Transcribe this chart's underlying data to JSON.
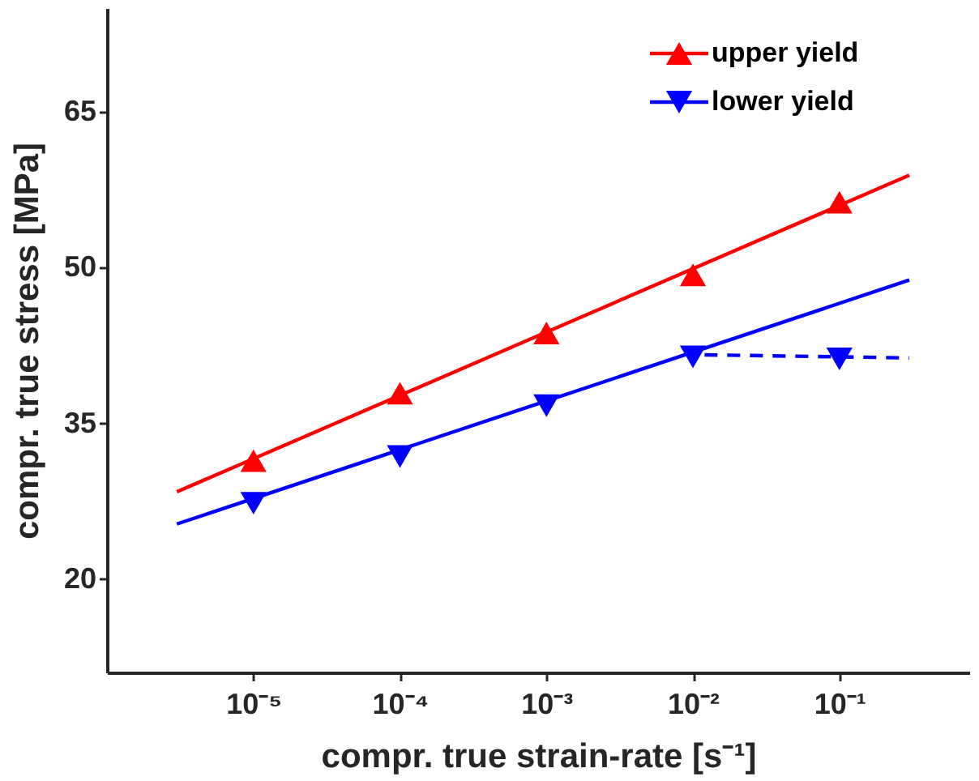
{
  "chart_data": {
    "type": "scatter",
    "xlabel": "compr. true strain-rate [s⁻¹]",
    "ylabel": "compr. true stress [MPa]",
    "log": "x",
    "xlim": [
      1e-06,
      0.77
    ],
    "ylim": [
      11,
      75
    ],
    "xticks": [
      {
        "value": 1e-05,
        "label": "10⁻⁵"
      },
      {
        "value": 0.0001,
        "label": "10⁻⁴"
      },
      {
        "value": 0.001,
        "label": "10⁻³"
      },
      {
        "value": 0.01,
        "label": "10⁻²"
      },
      {
        "value": 0.1,
        "label": "10⁻¹"
      }
    ],
    "yticks": [
      20,
      35,
      50,
      65
    ],
    "grid": false,
    "legend": "top right",
    "series": [
      {
        "name": "upper yield",
        "color": "#ff0000",
        "marker": "triangle",
        "x": [
          1e-05,
          0.0001,
          0.001,
          0.01,
          0.1
        ],
        "values": [
          31.4,
          37.9,
          43.7,
          49.3,
          56.3
        ]
      },
      {
        "type": "line",
        "color": "#ff0000",
        "line_style": "solid",
        "x": [
          3e-06,
          0.3
        ],
        "values": [
          28.4,
          58.9
        ]
      },
      {
        "name": "lower yield",
        "color": "#0000ff",
        "marker": "triangle-down",
        "x": [
          1e-05,
          0.0001,
          0.001,
          0.01,
          0.1
        ],
        "values": [
          27.3,
          31.8,
          36.7,
          41.4,
          41.2
        ]
      },
      {
        "type": "line",
        "color": "#0000ff",
        "line_style": "solid",
        "x": [
          3e-06,
          0.3
        ],
        "values": [
          25.3,
          48.8
        ]
      },
      {
        "type": "line",
        "color": "#0000ff",
        "line_style": "dashed",
        "x": [
          0.012,
          0.3
        ],
        "values": [
          41.6,
          41.3
        ]
      }
    ]
  }
}
